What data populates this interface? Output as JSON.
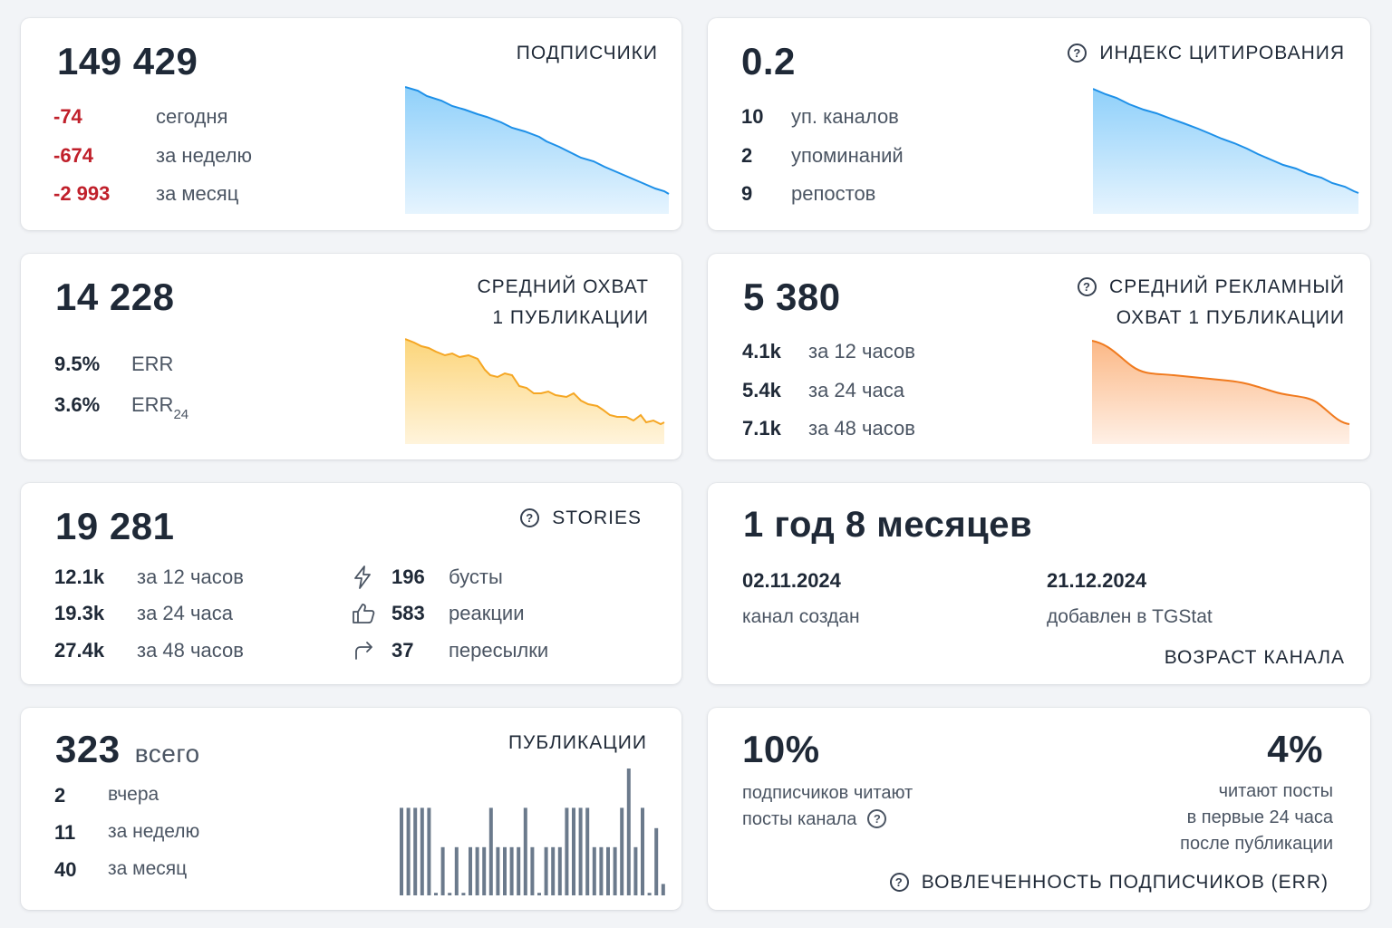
{
  "subscribers": {
    "value": "149 429",
    "title": "ПОДПИСЧИКИ",
    "stats": [
      {
        "value": "-74",
        "label": "сегодня"
      },
      {
        "value": "-674",
        "label": "за неделю"
      },
      {
        "value": "-2 993",
        "label": "за месяц"
      }
    ],
    "color": "#1e90e8"
  },
  "citation": {
    "value": "0.2",
    "title": "ИНДЕКС ЦИТИРОВАНИЯ",
    "stats": [
      {
        "value": "10",
        "label": "уп. каналов"
      },
      {
        "value": "2",
        "label": "упоминаний"
      },
      {
        "value": "9",
        "label": "репостов"
      }
    ],
    "color": "#1e90e8"
  },
  "reach": {
    "value": "14 228",
    "title_line1": "СРЕДНИЙ ОХВАТ",
    "title_line2": "1 ПУБЛИКАЦИИ",
    "stats": [
      {
        "value": "9.5%",
        "label": "ERR"
      },
      {
        "value": "3.6%",
        "label": "ERR",
        "sub": "24"
      }
    ],
    "color": "#f5a623"
  },
  "ad_reach": {
    "value": "5 380",
    "title_line1": "СРЕДНИЙ РЕКЛАМНЫЙ",
    "title_line2": "ОХВАТ 1 ПУБЛИКАЦИИ",
    "stats": [
      {
        "value": "4.1k",
        "label": "за 12 часов"
      },
      {
        "value": "5.4k",
        "label": "за 24 часа"
      },
      {
        "value": "7.1k",
        "label": "за 48 часов"
      }
    ],
    "color": "#f07a1e"
  },
  "stories": {
    "value": "19 281",
    "title": "STORIES",
    "left": [
      {
        "value": "12.1k",
        "label": "за 12 часов"
      },
      {
        "value": "19.3k",
        "label": "за 24 часа"
      },
      {
        "value": "27.4k",
        "label": "за 48 часов"
      }
    ],
    "right": [
      {
        "icon": "lightning-icon",
        "value": "196",
        "label": "бусты"
      },
      {
        "icon": "thumbs-up-icon",
        "value": "583",
        "label": "реакции"
      },
      {
        "icon": "share-arrow-icon",
        "value": "37",
        "label": "пересылки"
      }
    ]
  },
  "age": {
    "value": "1 год 8 месяцев",
    "created_date": "02.11.2024",
    "created_label": "канал создан",
    "added_date": "21.12.2024",
    "added_label": "добавлен в TGStat",
    "title": "ВОЗРАСТ КАНАЛА"
  },
  "posts": {
    "value": "323",
    "value_suffix": "всего",
    "title": "ПУБЛИКАЦИИ",
    "stats": [
      {
        "value": "2",
        "label": "вчера"
      },
      {
        "value": "11",
        "label": "за неделю"
      },
      {
        "value": "40",
        "label": "за месяц"
      }
    ],
    "bars": [
      0.69,
      0.69,
      0.69,
      0.69,
      0.69,
      0.02,
      0.38,
      0.02,
      0.38,
      0.02,
      0.38,
      0.38,
      0.38,
      0.69,
      0.38,
      0.38,
      0.38,
      0.38,
      0.69,
      0.38,
      0.02,
      0.38,
      0.38,
      0.38,
      0.69,
      0.69,
      0.69,
      0.69,
      0.38,
      0.38,
      0.38,
      0.38,
      0.69,
      1.0,
      0.38,
      0.69,
      0.02,
      0.53,
      0.09
    ],
    "color": "#6b7a8c"
  },
  "engagement": {
    "left_value": "10%",
    "left_line1": "подписчиков читают",
    "left_line2": "посты канала",
    "right_value": "4%",
    "right_line1": "читают посты",
    "right_line2": "в первые 24 часа",
    "right_line3": "после публикации",
    "title": "ВОВЛЕЧЕННОСТЬ ПОДПИСЧИКОВ (ERR)"
  }
}
